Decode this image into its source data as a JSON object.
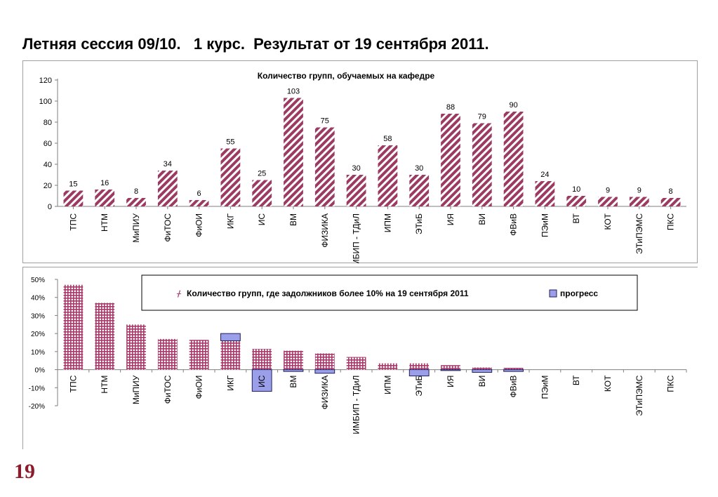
{
  "page": {
    "title": "Летняя сессия 09/10.   1 курс.  Результат от 19 сентября 2011.",
    "number": "19"
  },
  "colors": {
    "bar1_stripe": "#9c3a62",
    "bar2_grid": "#a8386a",
    "progress_fill": "#9b9fea",
    "progress_stroke": "#1f1f5a",
    "axis": "#7f7f7f",
    "page_number": "#8b1c2c"
  },
  "chart_data": [
    {
      "type": "bar",
      "title": "Количество групп, обучаемых на кафедре",
      "categories": [
        "ТПС",
        "НТМ",
        "МиПИУ",
        "ФиТОС",
        "ФиОИ",
        "ИКГ",
        "ИС",
        "ВМ",
        "ФИЗИКА",
        "ИМБИП - ТДиЛ",
        "ИПМ",
        "ЭТиБ",
        "ИЯ",
        "ВИ",
        "ФВиВ",
        "ПЭиМ",
        "ВТ",
        "КОТ",
        "ЭТиПЭМС",
        "ПКС"
      ],
      "values": [
        15,
        16,
        8,
        34,
        6,
        55,
        25,
        103,
        75,
        30,
        58,
        30,
        88,
        79,
        90,
        24,
        10,
        9,
        9,
        8
      ],
      "ylim": [
        0,
        120
      ],
      "yticks": [
        "0",
        "20",
        "40",
        "60",
        "80",
        "100",
        "120"
      ],
      "data_labels": true,
      "legend": "none"
    },
    {
      "type": "bar",
      "categories": [
        "ТПС",
        "НТМ",
        "МиПИУ",
        "ФиТОС",
        "ФиОИ",
        "ИКГ",
        "ИС",
        "ВМ",
        "ФИЗИКА",
        "ИМБИП - ТДиЛ",
        "ИПМ",
        "ЭТиБ",
        "ИЯ",
        "ВИ",
        "ФВиВ",
        "ПЭиМ",
        "ВТ",
        "КОТ",
        "ЭТиПЭМС",
        "ПКС"
      ],
      "series": [
        {
          "name": "Количество групп, где задолжников более  10% на 19 сентября 2011",
          "values": [
            0.47,
            0.37,
            0.25,
            0.17,
            0.165,
            0.16,
            0.115,
            0.105,
            0.09,
            0.07,
            0.035,
            0.035,
            0.025,
            0.012,
            0.01,
            0,
            0,
            0,
            0,
            0
          ]
        },
        {
          "name": "прогресс",
          "values": [
            0,
            0,
            0,
            0,
            0,
            0.04,
            -0.12,
            -0.01,
            -0.02,
            0,
            0,
            -0.035,
            -0.005,
            -0.015,
            -0.01,
            0,
            0,
            0,
            0,
            0
          ]
        }
      ],
      "ylim": [
        -0.2,
        0.5
      ],
      "yticks": [
        "-20%",
        "-10%",
        "0%",
        "10%",
        "20%",
        "30%",
        "40%",
        "50%"
      ],
      "legend": "top-center",
      "stacked": true
    }
  ]
}
